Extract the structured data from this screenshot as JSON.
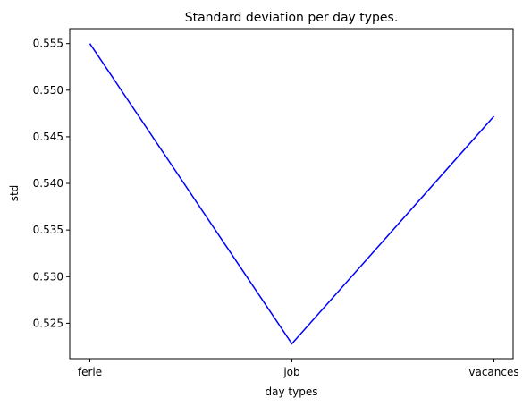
{
  "chart_data": {
    "type": "line",
    "title": "Standard deviation per day types.",
    "xlabel": "day types",
    "ylabel": "std",
    "categories": [
      "ferie",
      "job",
      "vacances"
    ],
    "series": [
      {
        "values": [
          0.555,
          0.5228,
          0.5472
        ],
        "color": "#0000ff"
      }
    ],
    "ylim": [
      0.5212,
      0.5566
    ],
    "yticks": [
      0.525,
      0.53,
      0.535,
      0.54,
      0.545,
      0.55,
      0.555
    ],
    "ytick_labels": [
      "0.525",
      "0.530",
      "0.535",
      "0.540",
      "0.545",
      "0.550",
      "0.555"
    ],
    "grid": false
  }
}
